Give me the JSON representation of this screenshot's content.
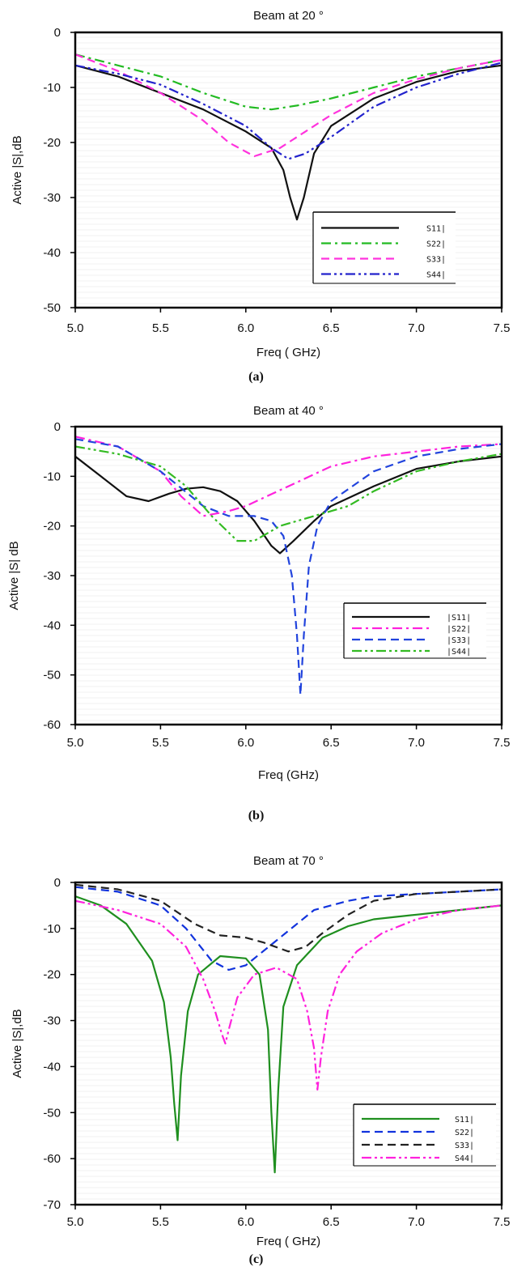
{
  "chart_data": [
    {
      "type": "line",
      "title": "Beam at 20 °",
      "xlabel": "Freq ( GHz)",
      "ylabel": "Active |S|,dB",
      "caption": "(a)",
      "xlim": [
        5.0,
        7.5
      ],
      "ylim": [
        -50,
        0
      ],
      "xticks": [
        "5.0",
        "5.5",
        "6.0",
        "6.5",
        "7.0",
        "7.5"
      ],
      "yticks": [
        "0",
        "-10",
        "-20",
        "-30",
        "-40",
        "-50"
      ],
      "legend": "bottom-right",
      "series": [
        {
          "name": "S11|",
          "color": "#111111",
          "dash": "solid",
          "x": [
            5.0,
            5.25,
            5.5,
            5.75,
            6.0,
            6.15,
            6.22,
            6.26,
            6.3,
            6.34,
            6.4,
            6.5,
            6.75,
            7.0,
            7.25,
            7.5
          ],
          "y": [
            -6,
            -8,
            -11,
            -14,
            -18,
            -21,
            -25,
            -30,
            -34,
            -30,
            -22,
            -17,
            -12,
            -9,
            -7,
            -6
          ]
        },
        {
          "name": "S22|",
          "color": "#22bb22",
          "dash": "dashdot",
          "x": [
            5.0,
            5.25,
            5.5,
            5.75,
            6.0,
            6.15,
            6.3,
            6.5,
            6.75,
            7.0,
            7.25,
            7.5
          ],
          "y": [
            -4,
            -6,
            -8,
            -11,
            -13.5,
            -14,
            -13.3,
            -12,
            -10,
            -8,
            -6.5,
            -5
          ]
        },
        {
          "name": "S33|",
          "color": "#ff33dd",
          "dash": "dash",
          "x": [
            5.0,
            5.25,
            5.5,
            5.75,
            5.9,
            6.05,
            6.2,
            6.35,
            6.5,
            6.75,
            7.0,
            7.25,
            7.5
          ],
          "y": [
            -4,
            -7,
            -11,
            -16,
            -20,
            -22.5,
            -21,
            -18,
            -15,
            -11,
            -8.5,
            -6.5,
            -5
          ]
        },
        {
          "name": "S44|",
          "color": "#2222cc",
          "dash": "dashdotdot",
          "x": [
            5.0,
            5.25,
            5.5,
            5.75,
            6.0,
            6.15,
            6.25,
            6.35,
            6.5,
            6.75,
            7.0,
            7.25,
            7.5
          ],
          "y": [
            -6,
            -7.5,
            -9.5,
            -13,
            -17,
            -21,
            -23,
            -22,
            -19,
            -13.5,
            -10,
            -7.5,
            -5.5
          ]
        }
      ]
    },
    {
      "type": "line",
      "title": "Beam at 40 °",
      "xlabel": "Freq (GHz)",
      "ylabel": "Active |S| dB",
      "caption": "(b)",
      "xlim": [
        5.0,
        7.5
      ],
      "ylim": [
        -60,
        0
      ],
      "xticks": [
        "5.0",
        "5.5",
        "6.0",
        "6.5",
        "7.0",
        "7.5"
      ],
      "yticks": [
        "0",
        "-10",
        "-20",
        "-30",
        "-40",
        "-50",
        "-60"
      ],
      "legend": "bottom-right",
      "series": [
        {
          "name": "|S11|",
          "color": "#111111",
          "dash": "solid",
          "x": [
            5.0,
            5.15,
            5.3,
            5.43,
            5.55,
            5.65,
            5.75,
            5.85,
            5.95,
            6.05,
            6.15,
            6.2,
            6.28,
            6.4,
            6.5,
            6.75,
            7.0,
            7.25,
            7.5
          ],
          "y": [
            -6,
            -10,
            -14,
            -15,
            -13.5,
            -12.5,
            -12.2,
            -13,
            -15,
            -19,
            -24,
            -25.5,
            -23,
            -19,
            -16,
            -12,
            -8.5,
            -7,
            -6
          ]
        },
        {
          "name": "|S22|",
          "color": "#ff22dd",
          "dash": "dashdot",
          "x": [
            5.0,
            5.25,
            5.5,
            5.62,
            5.75,
            5.9,
            6.0,
            6.25,
            6.5,
            6.75,
            7.0,
            7.25,
            7.5
          ],
          "y": [
            -2,
            -4,
            -9,
            -14,
            -18,
            -17,
            -16,
            -12,
            -8,
            -6,
            -5,
            -4,
            -3.5
          ]
        },
        {
          "name": "|S33|",
          "color": "#2244dd",
          "dash": "dash",
          "x": [
            5.0,
            5.25,
            5.5,
            5.75,
            5.9,
            6.05,
            6.15,
            6.22,
            6.27,
            6.3,
            6.32,
            6.34,
            6.37,
            6.42,
            6.5,
            6.75,
            7.0,
            7.25,
            7.5
          ],
          "y": [
            -2.5,
            -4,
            -9,
            -16,
            -18,
            -18,
            -19,
            -22,
            -30,
            -42,
            -54,
            -42,
            -28,
            -20,
            -15,
            -9,
            -6,
            -4.5,
            -3.5
          ]
        },
        {
          "name": "|S44|",
          "color": "#33bb22",
          "dash": "dashdotdot",
          "x": [
            5.0,
            5.25,
            5.5,
            5.65,
            5.8,
            5.95,
            6.05,
            6.2,
            6.4,
            6.6,
            6.75,
            7.0,
            7.25,
            7.5
          ],
          "y": [
            -4,
            -5.5,
            -8,
            -12,
            -18,
            -23,
            -23,
            -20,
            -18,
            -16,
            -13,
            -9,
            -7,
            -5.5
          ]
        }
      ]
    },
    {
      "type": "line",
      "title": "Beam at 70 °",
      "xlabel": "Freq ( GHz)",
      "ylabel": "Active |S|,dB",
      "caption": "(c)",
      "xlim": [
        5.0,
        7.5
      ],
      "ylim": [
        -70,
        0
      ],
      "xticks": [
        "5.0",
        "5.5",
        "6.0",
        "6.5",
        "7.0",
        "7.5"
      ],
      "yticks": [
        "0",
        "-10",
        "-20",
        "-30",
        "-40",
        "-50",
        "-60",
        "-70"
      ],
      "legend": "bottom-right",
      "series": [
        {
          "name": "S11|",
          "color": "#1f8f1f",
          "dash": "solid",
          "x": [
            5.0,
            5.15,
            5.3,
            5.45,
            5.52,
            5.56,
            5.58,
            5.6,
            5.62,
            5.66,
            5.72,
            5.85,
            6.0,
            6.08,
            6.13,
            6.15,
            6.17,
            6.19,
            6.22,
            6.3,
            6.45,
            6.6,
            6.75,
            7.0,
            7.25,
            7.5
          ],
          "y": [
            -3,
            -5,
            -9,
            -17,
            -26,
            -38,
            -48,
            -56,
            -42,
            -28,
            -20,
            -16,
            -16.5,
            -20,
            -32,
            -50,
            -63,
            -45,
            -27,
            -18,
            -12,
            -9.5,
            -8,
            -7,
            -6,
            -5
          ]
        },
        {
          "name": "S22|",
          "color": "#1133dd",
          "dash": "dash",
          "x": [
            5.0,
            5.25,
            5.5,
            5.65,
            5.8,
            5.9,
            6.0,
            6.2,
            6.4,
            6.6,
            6.75,
            7.0,
            7.25,
            7.5
          ],
          "y": [
            -1,
            -2,
            -5,
            -10,
            -17,
            -19,
            -18,
            -12,
            -6,
            -4,
            -3,
            -2.5,
            -2,
            -1.5
          ]
        },
        {
          "name": "S33|",
          "color": "#222222",
          "dash": "dash",
          "x": [
            5.0,
            5.25,
            5.5,
            5.7,
            5.85,
            6.0,
            6.1,
            6.25,
            6.35,
            6.45,
            6.6,
            6.75,
            7.0,
            7.25,
            7.5
          ],
          "y": [
            -0.5,
            -1.5,
            -4,
            -9,
            -11.5,
            -12,
            -13,
            -15,
            -14,
            -11,
            -7,
            -4,
            -2.5,
            -2,
            -1.5
          ]
        },
        {
          "name": "S44|",
          "color": "#ff22dd",
          "dash": "dashdotdot",
          "x": [
            5.0,
            5.25,
            5.5,
            5.65,
            5.75,
            5.82,
            5.86,
            5.88,
            5.9,
            5.95,
            6.05,
            6.18,
            6.3,
            6.36,
            6.4,
            6.42,
            6.44,
            6.48,
            6.55,
            6.65,
            6.8,
            7.0,
            7.25,
            7.5
          ],
          "y": [
            -4,
            -6,
            -9,
            -14,
            -21,
            -28,
            -33,
            -35,
            -32,
            -25,
            -20,
            -18.5,
            -21,
            -28,
            -36,
            -45,
            -38,
            -28,
            -20,
            -15,
            -11,
            -8,
            -6,
            -5
          ]
        }
      ]
    }
  ]
}
